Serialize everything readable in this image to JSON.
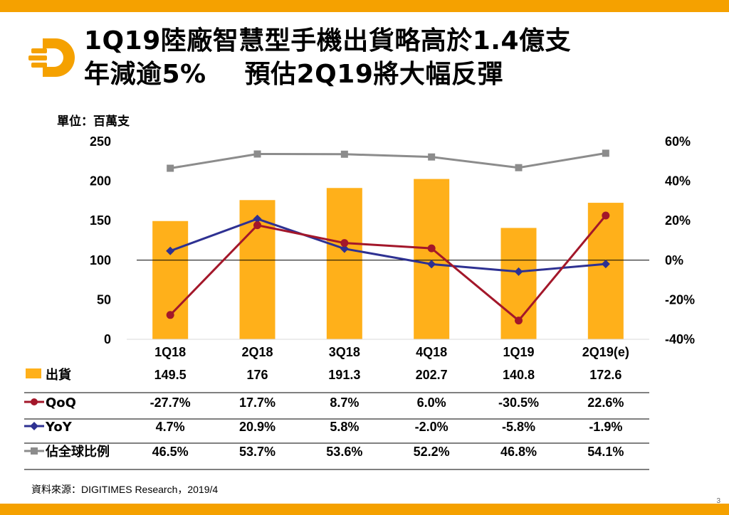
{
  "title": {
    "line1": "1Q19陸廠智慧型手機出貨略高於1.4億支",
    "line2a": "年減逾5%",
    "line2b": "預估2Q19將大幅反彈"
  },
  "unit_label": "單位：百萬支",
  "source": "資料來源：DIGITIMES Research，2019/4",
  "page_number": "3",
  "colors": {
    "accent": "#f5a100",
    "bar": "#ffb01a",
    "qoq": "#a3172a",
    "yoy": "#2e3192",
    "share": "#8c8c8c"
  },
  "chart_data": {
    "type": "bar",
    "categories": [
      "1Q18",
      "2Q18",
      "3Q18",
      "4Q18",
      "1Q19",
      "2Q19(e)"
    ],
    "left_axis": {
      "ylim": [
        0,
        250
      ],
      "ticks": [
        0,
        50,
        100,
        150,
        200,
        250
      ]
    },
    "right_axis": {
      "ylim": [
        -40,
        60
      ],
      "ticks": [
        "-40%",
        "-20%",
        "0%",
        "20%",
        "40%",
        "60%"
      ]
    },
    "series": [
      {
        "name": "出貨",
        "type": "bar",
        "axis": "left",
        "values": [
          149.5,
          176,
          191.3,
          202.7,
          140.8,
          172.6
        ],
        "labels": [
          "149.5",
          "176",
          "191.3",
          "202.7",
          "140.8",
          "172.6"
        ]
      },
      {
        "name": "QoQ",
        "type": "line",
        "axis": "right",
        "values": [
          -27.7,
          17.7,
          8.7,
          6.0,
          -30.5,
          22.6
        ],
        "labels": [
          "-27.7%",
          "17.7%",
          "8.7%",
          "6.0%",
          "-30.5%",
          "22.6%"
        ]
      },
      {
        "name": "YoY",
        "type": "line",
        "axis": "right",
        "values": [
          4.7,
          20.9,
          5.8,
          -2.0,
          -5.8,
          -1.9
        ],
        "labels": [
          "4.7%",
          "20.9%",
          "5.8%",
          "-2.0%",
          "-5.8%",
          "-1.9%"
        ]
      },
      {
        "name": "佔全球比例",
        "type": "line",
        "axis": "right",
        "values": [
          46.5,
          53.7,
          53.6,
          52.2,
          46.8,
          54.1
        ],
        "labels": [
          "46.5%",
          "53.7%",
          "53.6%",
          "52.2%",
          "46.8%",
          "54.1%"
        ]
      }
    ]
  }
}
